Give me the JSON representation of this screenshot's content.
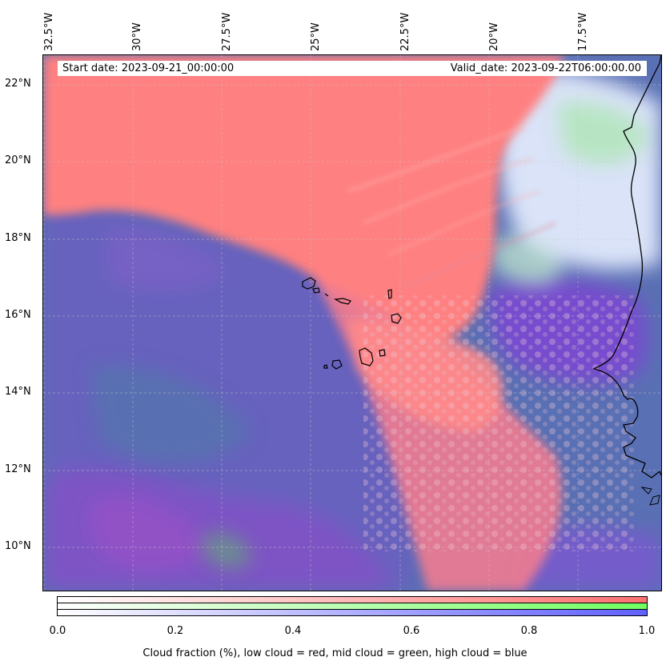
{
  "map": {
    "start_date": "Start date: 2023-09-21_00:00:00",
    "valid_date": "Valid_date: 2023-09-22T06:00:00.00",
    "lon_labels": [
      "32.5°W",
      "30°W",
      "27.5°W",
      "25°W",
      "22.5°W",
      "20°W",
      "17.5°W"
    ],
    "lat_labels": [
      "22°N",
      "20°N",
      "18°N",
      "16°N",
      "14°N",
      "12°N",
      "10°N"
    ],
    "extent": {
      "lon_min": -32.5,
      "lon_max": -15.1,
      "lat_min": 8.9,
      "lat_max": 22.8
    },
    "layers": {
      "low_cloud_color": "#ff8080",
      "mid_cloud_color": "#80ff80",
      "high_cloud_color": "#8080ff"
    }
  },
  "colorbar": {
    "ticks": [
      "0.0",
      "0.2",
      "0.4",
      "0.6",
      "0.8",
      "1.0"
    ],
    "caption": "Cloud fraction (%), low cloud = red, mid cloud = green, high cloud = blue",
    "bands": [
      {
        "name": "low cloud",
        "color": "#ff7070"
      },
      {
        "name": "mid cloud",
        "color": "#70ff60"
      },
      {
        "name": "high cloud",
        "color": "#6060ff"
      }
    ]
  }
}
